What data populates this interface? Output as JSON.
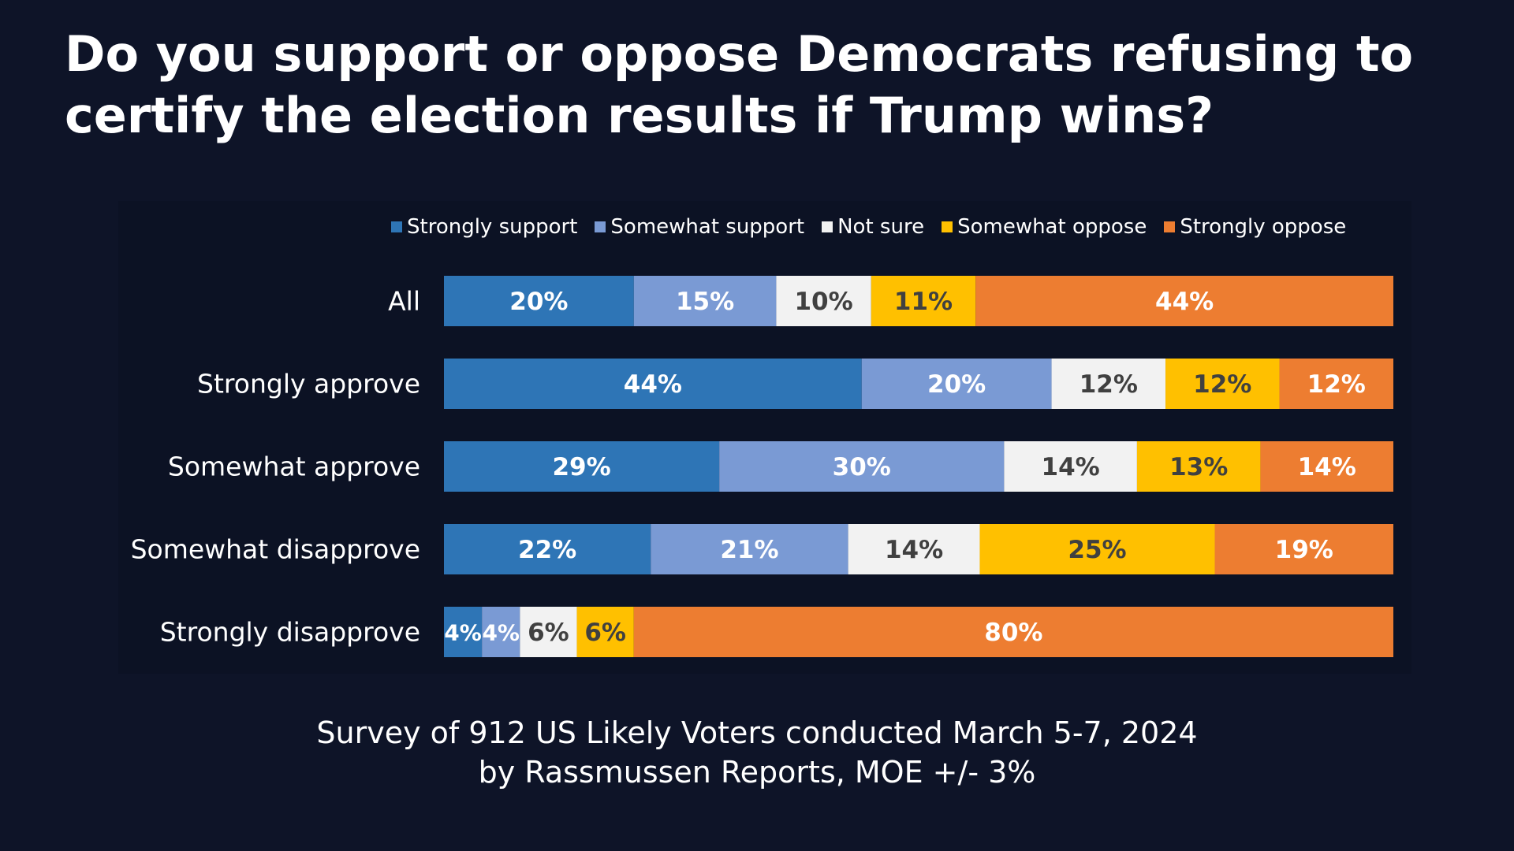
{
  "title": "Do you support or oppose Democrats refusing to certify the election results if Trump wins?",
  "footnote": {
    "line1": "Survey of 912 US Likely Voters conducted March 5-7, 2024",
    "line2": "by Rassmussen Reports, MOE +/- 3%"
  },
  "colors": {
    "background": "#0e1428",
    "strongly_support": "#2e75b6",
    "somewhat_support": "#7a9ad4",
    "not_sure": "#f2f2f2",
    "somewhat_oppose": "#ffc000",
    "strongly_oppose": "#ed7d31"
  },
  "chart_data": {
    "type": "bar",
    "orientation": "horizontal",
    "stacked": true,
    "normalized": true,
    "title": "Do you support or oppose Democrats refusing to certify the election results if Trump wins?",
    "categories": [
      "All",
      "Strongly approve",
      "Somewhat approve",
      "Somewhat disapprove",
      "Strongly disapprove"
    ],
    "legend_position": "top",
    "grid": false,
    "series": [
      {
        "name": "Strongly support",
        "color": "#2e75b6",
        "label_color": "#ffffff",
        "values": [
          20,
          44,
          29,
          22,
          4
        ],
        "labels": [
          "20%",
          "44%",
          "29%",
          "22%",
          "4%"
        ]
      },
      {
        "name": "Somewhat support",
        "color": "#7a9ad4",
        "label_color": "#ffffff",
        "values": [
          15,
          20,
          30,
          21,
          4
        ],
        "labels": [
          "15%",
          "20%",
          "30%",
          "21%",
          "4%"
        ]
      },
      {
        "name": "Not sure",
        "color": "#f2f2f2",
        "label_color": "#404040",
        "values": [
          10,
          12,
          14,
          14,
          6
        ],
        "labels": [
          "10%",
          "12%",
          "14%",
          "14%",
          "6%"
        ]
      },
      {
        "name": "Somewhat oppose",
        "color": "#ffc000",
        "label_color": "#404040",
        "values": [
          11,
          12,
          13,
          25,
          6
        ],
        "labels": [
          "11%",
          "12%",
          "13%",
          "25%",
          "6%"
        ]
      },
      {
        "name": "Strongly oppose",
        "color": "#ed7d31",
        "label_color": "#ffffff",
        "values": [
          44,
          12,
          14,
          19,
          80
        ],
        "labels": [
          "44%",
          "12%",
          "14%",
          "19%",
          "80%"
        ]
      }
    ]
  }
}
